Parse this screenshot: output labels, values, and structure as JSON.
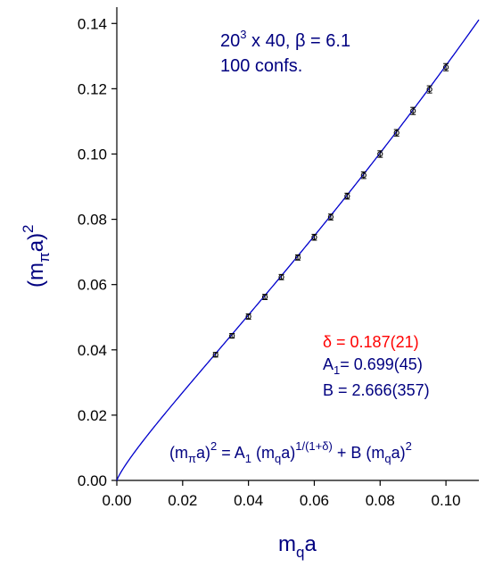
{
  "chart_data": {
    "type": "scatter",
    "title": "",
    "xlabel": {
      "main": "m",
      "sub": "q",
      "tail": "a"
    },
    "ylabel": {
      "open": "(m",
      "sub": "π",
      "close": "a)",
      "sup": "2"
    },
    "xlim": [
      0.0,
      0.11
    ],
    "ylim": [
      0.0,
      0.145
    ],
    "xticks": [
      0.0,
      0.02,
      0.04,
      0.06,
      0.08,
      0.1
    ],
    "xtick_labels": [
      "0.00",
      "0.02",
      "0.04",
      "0.06",
      "0.08",
      "0.10"
    ],
    "yticks": [
      0.0,
      0.02,
      0.04,
      0.06,
      0.08,
      0.1,
      0.12,
      0.14
    ],
    "ytick_labels": [
      "0.00",
      "0.02",
      "0.04",
      "0.06",
      "0.08",
      "0.10",
      "0.12",
      "0.14"
    ],
    "grid": false,
    "series": [
      {
        "type": "scatter",
        "color": "#000000",
        "x": [
          0.03,
          0.035,
          0.04,
          0.045,
          0.05,
          0.055,
          0.06,
          0.065,
          0.07,
          0.075,
          0.08,
          0.085,
          0.09,
          0.095,
          0.1
        ],
        "y": [
          0.0385,
          0.0443,
          0.0502,
          0.0562,
          0.0623,
          0.0683,
          0.0745,
          0.0807,
          0.0871,
          0.0935,
          0.1,
          0.1065,
          0.1132,
          0.1198,
          0.1266
        ],
        "yerr": [
          0.0007,
          0.0007,
          0.0008,
          0.0008,
          0.0008,
          0.0008,
          0.0009,
          0.0009,
          0.0009,
          0.001,
          0.001,
          0.001,
          0.0011,
          0.0011,
          0.0011
        ]
      },
      {
        "type": "line",
        "color": "#0000cc",
        "fit": {
          "A1": 0.699,
          "B": 2.666,
          "delta": 0.187
        }
      }
    ],
    "annotations": {
      "lattice": {
        "base": "20",
        "exp": "3",
        "rest": " x 40, ",
        "beta_sym": "β",
        "beta_val": " = 6.1"
      },
      "confs": "100 confs.",
      "delta_label": "δ  = 0.187(21)",
      "a1_label": {
        "main": "A",
        "sub": "1",
        "rest": "= 0.699(45)"
      },
      "b_label": "B = 2.666(357)",
      "formula": {
        "p1": "(m",
        "s1": "π",
        "p2": "a)",
        "e1": "2",
        "p3": " = A",
        "s2": "1",
        "p4": " (m",
        "s3": "q",
        "p5": "a)",
        "e2": "1/(1+δ)",
        "p6": " + B (m",
        "s4": "q",
        "p7": "a)",
        "e3": "2"
      }
    }
  }
}
